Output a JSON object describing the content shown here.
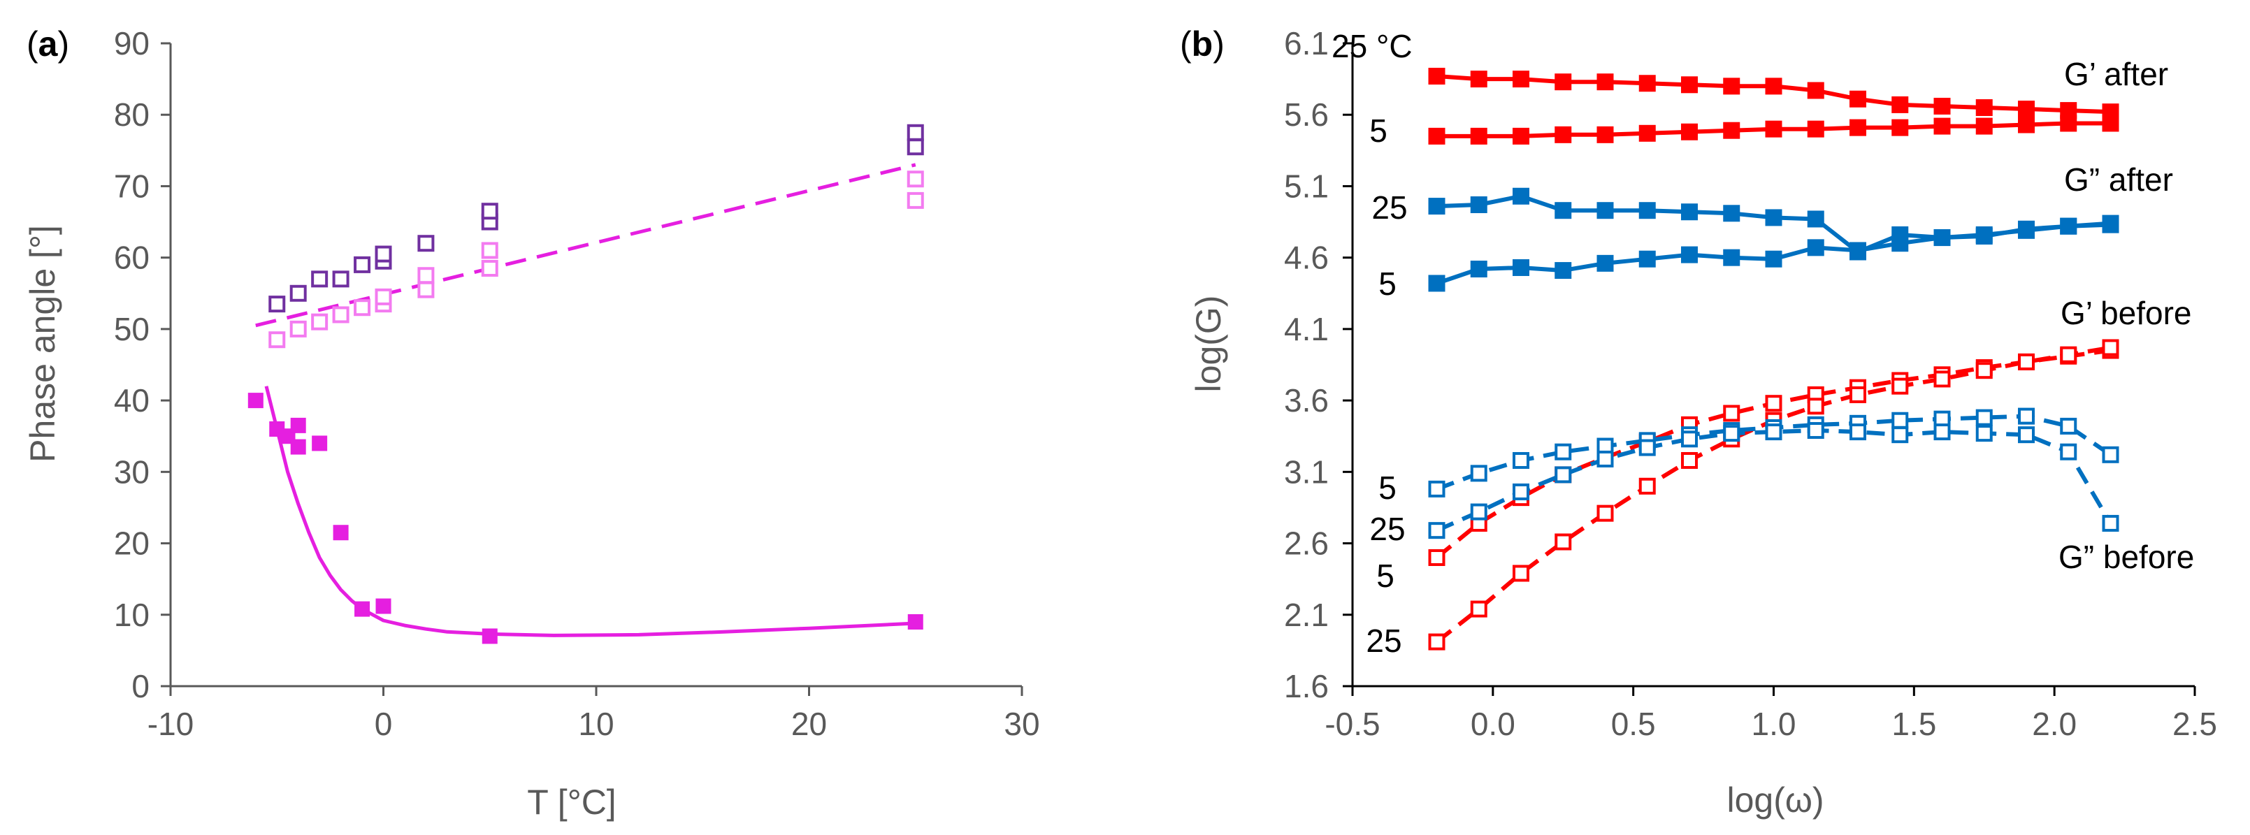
{
  "chart_data": [
    {
      "panel": "(a)",
      "panel_bold": "a",
      "type": "scatter",
      "xlabel": "T [°C]",
      "ylabel": "Phase angle [°]",
      "xlim": [
        -10,
        30
      ],
      "ylim": [
        0,
        90
      ],
      "xticks": [
        -10,
        0,
        10,
        20,
        30
      ],
      "yticks": [
        0,
        10,
        20,
        30,
        40,
        50,
        60,
        70,
        80,
        90
      ],
      "series": [
        {
          "name": "after",
          "marker": "filled-square",
          "color": "#e51fe0",
          "points": [
            [
              -6,
              40
            ],
            [
              -5,
              36
            ],
            [
              -4.5,
              35
            ],
            [
              -4,
              36.5
            ],
            [
              -4,
              33.5
            ],
            [
              -3,
              34
            ],
            [
              -2,
              21.5
            ],
            [
              -1,
              10.8
            ],
            [
              0,
              11.2
            ],
            [
              5,
              7
            ],
            [
              25,
              9
            ]
          ]
        },
        {
          "name": "before-dark",
          "marker": "open-square",
          "color": "#7030a0",
          "points": [
            [
              -5,
              53.5
            ],
            [
              -4,
              55
            ],
            [
              -3,
              57
            ],
            [
              -2,
              57
            ],
            [
              -1,
              59
            ],
            [
              0,
              59.5
            ],
            [
              0,
              60.5
            ],
            [
              2,
              62
            ],
            [
              5,
              65
            ],
            [
              5,
              66.5
            ],
            [
              25,
              75.5
            ],
            [
              25,
              77.5
            ]
          ]
        },
        {
          "name": "before-light",
          "marker": "open-square",
          "color": "#f37bf0",
          "points": [
            [
              -5,
              48.5
            ],
            [
              -4,
              50
            ],
            [
              -3,
              51
            ],
            [
              -2,
              52
            ],
            [
              -1,
              53
            ],
            [
              0,
              53.5
            ],
            [
              0,
              54.5
            ],
            [
              2,
              55.5
            ],
            [
              2,
              57.5
            ],
            [
              5,
              58.5
            ],
            [
              5,
              61
            ],
            [
              25,
              68
            ],
            [
              25,
              71
            ]
          ]
        }
      ],
      "fits": [
        {
          "name": "after-fit",
          "style": "solid",
          "color": "#e51fe0",
          "x": [
            -5.5,
            -5,
            -4.5,
            -4,
            -3.5,
            -3,
            -2.5,
            -2,
            -1.5,
            -1,
            -0.5,
            0,
            1,
            2,
            3,
            5,
            8,
            12,
            16,
            20,
            25
          ],
          "y": [
            42,
            36,
            30,
            25.5,
            21.5,
            18,
            15.5,
            13.5,
            12,
            10.8,
            10,
            9.2,
            8.5,
            8,
            7.6,
            7.3,
            7.1,
            7.2,
            7.6,
            8.1,
            8.8
          ]
        },
        {
          "name": "before-fit",
          "style": "dashed",
          "color": "#e51fe0",
          "x": [
            -6,
            25
          ],
          "y": [
            50.5,
            73
          ]
        }
      ]
    },
    {
      "panel": "(b)",
      "panel_bold": "b",
      "type": "line",
      "xlabel": "log(ω)",
      "ylabel": "log(G)",
      "xlim": [
        -0.5,
        2.5
      ],
      "ylim": [
        1.6,
        6.1
      ],
      "xticks": [
        "-0.5",
        "0.0",
        "0.5",
        "1.0",
        "1.5",
        "2.0",
        "2.5"
      ],
      "yticks": [
        "1.6",
        "2.1",
        "2.6",
        "3.1",
        "3.6",
        "4.1",
        "4.6",
        "5.1",
        "5.6",
        "6.1"
      ],
      "x": [
        -0.2,
        -0.05,
        0.1,
        0.25,
        0.4,
        0.55,
        0.7,
        0.85,
        1.0,
        1.15,
        1.3,
        1.45,
        1.6,
        1.75,
        1.9,
        2.05,
        2.2
      ],
      "series": [
        {
          "name": "G' after 25 °C",
          "color": "#ff0000",
          "marker": "filled",
          "style": "solid",
          "values": [
            5.87,
            5.85,
            5.85,
            5.83,
            5.83,
            5.82,
            5.81,
            5.8,
            5.8,
            5.77,
            5.71,
            5.67,
            5.66,
            5.65,
            5.64,
            5.63,
            5.62
          ]
        },
        {
          "name": "G' after 5 °C",
          "color": "#ff0000",
          "marker": "filled",
          "style": "solid",
          "values": [
            5.45,
            5.45,
            5.45,
            5.46,
            5.46,
            5.47,
            5.48,
            5.49,
            5.5,
            5.5,
            5.51,
            5.51,
            5.52,
            5.52,
            5.53,
            5.54,
            5.54
          ]
        },
        {
          "name": "G'' after 25 °C",
          "color": "#0070c0",
          "marker": "filled",
          "style": "solid",
          "values": [
            4.96,
            4.97,
            5.03,
            4.93,
            4.93,
            4.93,
            4.92,
            4.91,
            4.88,
            4.87,
            4.64,
            4.76,
            4.74,
            4.75,
            4.8,
            4.82,
            4.83
          ]
        },
        {
          "name": "G'' after 5 °C",
          "color": "#0070c0",
          "marker": "filled",
          "style": "solid",
          "values": [
            4.42,
            4.52,
            4.53,
            4.51,
            4.56,
            4.59,
            4.62,
            4.6,
            4.59,
            4.67,
            4.65,
            4.7,
            4.74,
            4.76,
            4.79,
            4.82,
            4.84
          ]
        },
        {
          "name": "G' before 5 °C",
          "color": "#ff0000",
          "marker": "open",
          "style": "dashed",
          "values": [
            2.5,
            2.74,
            2.92,
            3.08,
            3.2,
            3.31,
            3.43,
            3.51,
            3.58,
            3.64,
            3.69,
            3.74,
            3.78,
            3.83,
            3.87,
            3.91,
            3.95
          ]
        },
        {
          "name": "G' before 25 °C",
          "color": "#ff0000",
          "marker": "open",
          "style": "dashed",
          "values": [
            1.91,
            2.14,
            2.39,
            2.61,
            2.81,
            3.0,
            3.18,
            3.33,
            3.46,
            3.56,
            3.64,
            3.7,
            3.75,
            3.81,
            3.87,
            3.92,
            3.97
          ]
        },
        {
          "name": "G'' before 5 °C",
          "color": "#0070c0",
          "marker": "open",
          "style": "dashed",
          "values": [
            2.98,
            3.09,
            3.18,
            3.24,
            3.28,
            3.32,
            3.36,
            3.39,
            3.41,
            3.43,
            3.44,
            3.46,
            3.47,
            3.48,
            3.49,
            3.42,
            3.22
          ]
        },
        {
          "name": "G'' before 25 °C",
          "color": "#0070c0",
          "marker": "open",
          "style": "dashed",
          "values": [
            2.69,
            2.82,
            2.96,
            3.08,
            3.19,
            3.27,
            3.33,
            3.37,
            3.38,
            3.39,
            3.38,
            3.36,
            3.38,
            3.37,
            3.36,
            3.24,
            2.74
          ]
        }
      ],
      "annotations": {
        "temp_25_unit": "25 °C",
        "five_a": "5",
        "twentyfive_b": "25",
        "five_b": "5",
        "five_c": "5",
        "twentyfive_c": "25",
        "five_d": "5",
        "twentyfive_d": "25",
        "gp_after": "G’ after",
        "gpp_after": "G” after",
        "gp_before": "G’ before",
        "gpp_before": "G” before"
      }
    }
  ]
}
